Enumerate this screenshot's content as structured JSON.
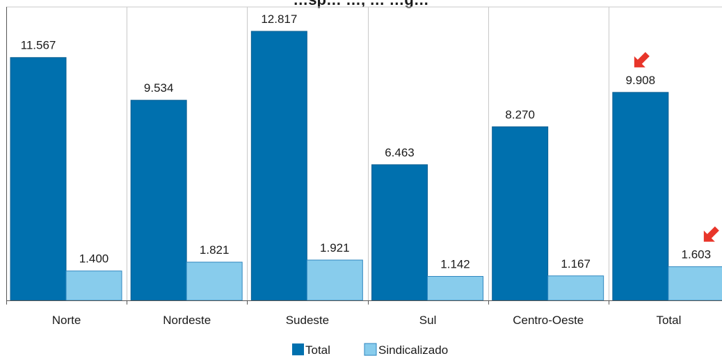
{
  "colors": {
    "total": "#0070AE",
    "sindicalizado": "#88CCEC",
    "arrow": "#E8352A",
    "grid": "#C8C8C8",
    "axis": "#555555"
  },
  "chart_data": {
    "type": "bar",
    "title": "…sp… …, … …g…",
    "categories": [
      "Norte",
      "Nordeste",
      "Sudeste",
      "Sul",
      "Centro-Oeste",
      "Total"
    ],
    "series": [
      {
        "name": "Total",
        "values": [
          11567,
          9534,
          12817,
          6463,
          8270,
          9908
        ],
        "labels": [
          "11.567",
          "9.534",
          "12.817",
          "6.463",
          "8.270",
          "9.908"
        ]
      },
      {
        "name": "Sindicalizado",
        "values": [
          1400,
          1821,
          1921,
          1142,
          1167,
          1603
        ],
        "labels": [
          "1.400",
          "1.821",
          "1.921",
          "1.142",
          "1.167",
          "1.603"
        ]
      }
    ],
    "ylim": [
      0,
      13500
    ],
    "grid": "vertical separators between categories",
    "legend_position": "bottom-center",
    "highlighted_category": "Total"
  }
}
